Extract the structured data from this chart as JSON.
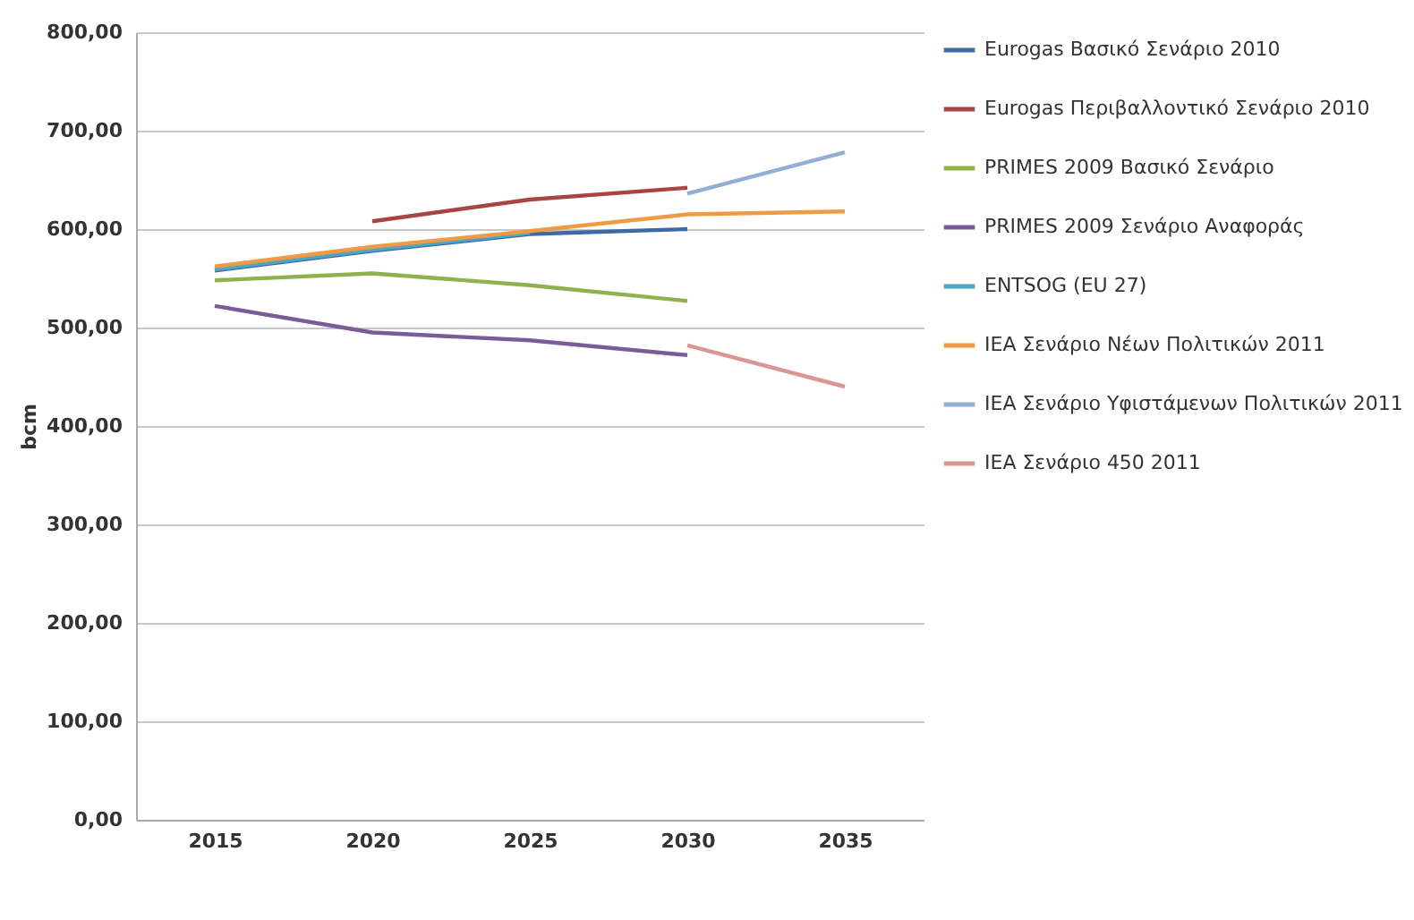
{
  "chart_data": {
    "type": "line",
    "ylabel": "bcm",
    "categories": [
      "2015",
      "2020",
      "2025",
      "2030",
      "2035"
    ],
    "ylim": [
      0,
      800
    ],
    "yticks": [
      {
        "value": 0,
        "label": "0,00"
      },
      {
        "value": 100,
        "label": "100,00"
      },
      {
        "value": 200,
        "label": "200,00"
      },
      {
        "value": 300,
        "label": "300,00"
      },
      {
        "value": 400,
        "label": "400,00"
      },
      {
        "value": 500,
        "label": "500,00"
      },
      {
        "value": 600,
        "label": "600,00"
      },
      {
        "value": 700,
        "label": "700,00"
      },
      {
        "value": 800,
        "label": "800,00"
      }
    ],
    "grid": "y",
    "legend": "right",
    "series": [
      {
        "name": "Eurogas Βασικό Σενάριο 2010",
        "color": "#3c6aa5",
        "values": [
          558,
          578,
          595,
          600,
          null
        ]
      },
      {
        "name": "Eurogas Περιβαλλοντικό Σενάριο 2010",
        "color": "#a84442",
        "values": [
          null,
          608,
          630,
          642,
          null
        ]
      },
      {
        "name": "PRIMES 2009 Βασικό Σενάριο",
        "color": "#8fb150",
        "values": [
          548,
          555,
          543,
          527,
          null
        ]
      },
      {
        "name": "PRIMES 2009 Σενάριο Αναφοράς",
        "color": "#7a5c99",
        "values": [
          522,
          495,
          487,
          472,
          null
        ]
      },
      {
        "name": "ENTSOG (EU 27)",
        "color": "#4aa8c5",
        "values": [
          559,
          579,
          596,
          null,
          null
        ]
      },
      {
        "name": "IEA Σενάριο Νέων Πολιτικών 2011",
        "color": "#f09a45",
        "values": [
          562,
          582,
          598,
          615,
          618
        ]
      },
      {
        "name": "IEA Σενάριο Υφιστάμενων Πολιτικών 2011",
        "color": "#93aed3",
        "values": [
          null,
          null,
          null,
          636,
          678
        ]
      },
      {
        "name": "IEA Σενάριο 450 2011",
        "color": "#d99894",
        "values": [
          null,
          null,
          null,
          482,
          440
        ]
      }
    ]
  }
}
